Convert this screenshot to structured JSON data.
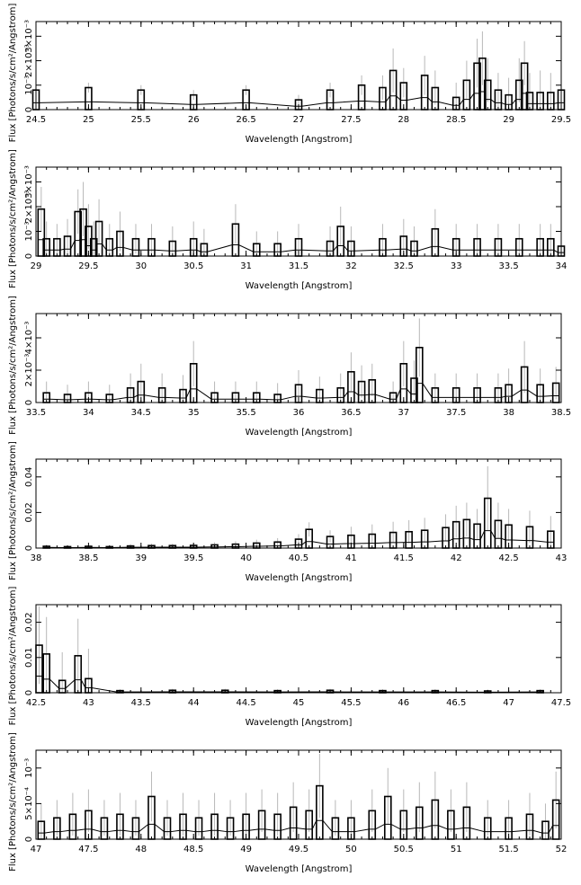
{
  "chart_data": [
    {
      "type": "step",
      "xlabel": "Wavelength [Angstrom]",
      "ylabel": "Flux [Photons/s/cm²/Angstrom]",
      "xlim": [
        24.5,
        29.5
      ],
      "ylim": [
        0,
        0.0036
      ],
      "xticks": [
        {
          "v": 24.5,
          "label": "24.5"
        },
        {
          "v": 25,
          "label": "25"
        },
        {
          "v": 25.5,
          "label": "25.5"
        },
        {
          "v": 26,
          "label": "26"
        },
        {
          "v": 26.5,
          "label": "26.5"
        },
        {
          "v": 27,
          "label": "27"
        },
        {
          "v": 27.5,
          "label": "27.5"
        },
        {
          "v": 28,
          "label": "28"
        },
        {
          "v": 28.5,
          "label": "28.5"
        },
        {
          "v": 29,
          "label": "29"
        },
        {
          "v": 29.5,
          "label": "29.5"
        }
      ],
      "yticks": [
        {
          "v": 0,
          "label": "0"
        },
        {
          "v": 0.001,
          "label": "10⁻³"
        },
        {
          "v": 0.002,
          "label": "2×10⁻³"
        },
        {
          "v": 0.003,
          "label": "3×10⁻³"
        }
      ],
      "bin_width": 0.025,
      "x": [
        24.5,
        25.0,
        25.5,
        26.0,
        26.5,
        27.0,
        27.3,
        27.6,
        27.8,
        27.9,
        28.0,
        28.2,
        28.3,
        28.5,
        28.6,
        28.7,
        28.75,
        28.8,
        28.9,
        29.0,
        29.1,
        29.15,
        29.2,
        29.3,
        29.4,
        29.5
      ],
      "flux": [
        0.0008,
        0.0009,
        0.0008,
        0.0006,
        0.0008,
        0.0004,
        0.0008,
        0.001,
        0.0009,
        0.0016,
        0.0011,
        0.0014,
        0.0009,
        0.0005,
        0.0012,
        0.0019,
        0.0021,
        0.0012,
        0.0008,
        0.0006,
        0.0012,
        0.0019,
        0.0007,
        0.0007,
        0.0007,
        0.0008
      ],
      "err": [
        0.0002,
        0.0002,
        0.0002,
        0.0002,
        0.0002,
        0.0002,
        0.0003,
        0.0004,
        0.0005,
        0.0009,
        0.0006,
        0.0008,
        0.0007,
        0.0006,
        0.0008,
        0.001,
        0.0011,
        0.0009,
        0.0007,
        0.0007,
        0.0009,
        0.0009,
        0.0008,
        0.0009,
        0.0008,
        0.0007
      ]
    },
    {
      "type": "step",
      "xlabel": "Wavelength [Angstrom]",
      "ylabel": "Flux [Photons/s/cm²/Angstrom]",
      "xlim": [
        29,
        34
      ],
      "ylim": [
        0,
        0.0036
      ],
      "xticks": [
        {
          "v": 29,
          "label": "29"
        },
        {
          "v": 29.5,
          "label": "29.5"
        },
        {
          "v": 30,
          "label": "30"
        },
        {
          "v": 30.5,
          "label": "30.5"
        },
        {
          "v": 31,
          "label": "31"
        },
        {
          "v": 31.5,
          "label": "31.5"
        },
        {
          "v": 32,
          "label": "32"
        },
        {
          "v": 32.5,
          "label": "32.5"
        },
        {
          "v": 33,
          "label": "33"
        },
        {
          "v": 33.5,
          "label": "33.5"
        },
        {
          "v": 34,
          "label": "34"
        }
      ],
      "yticks": [
        {
          "v": 0,
          "label": "0"
        },
        {
          "v": 0.001,
          "label": "10⁻³"
        },
        {
          "v": 0.002,
          "label": "2×10⁻³"
        },
        {
          "v": 0.003,
          "label": "3×10⁻³"
        }
      ],
      "bin_width": 0.025,
      "x": [
        29.05,
        29.1,
        29.2,
        29.3,
        29.4,
        29.45,
        29.5,
        29.55,
        29.6,
        29.7,
        29.8,
        29.95,
        30.1,
        30.3,
        30.5,
        30.6,
        30.9,
        31.1,
        31.3,
        31.5,
        31.8,
        31.9,
        32.0,
        32.3,
        32.5,
        32.6,
        32.8,
        33.0,
        33.2,
        33.4,
        33.6,
        33.8,
        33.9,
        34.0
      ],
      "flux": [
        0.0019,
        0.0007,
        0.0007,
        0.0008,
        0.0018,
        0.0019,
        0.0012,
        0.0007,
        0.0014,
        0.0007,
        0.001,
        0.0007,
        0.0007,
        0.0006,
        0.0007,
        0.0005,
        0.0013,
        0.0005,
        0.0005,
        0.0007,
        0.0006,
        0.0012,
        0.0006,
        0.0007,
        0.0008,
        0.0006,
        0.0011,
        0.0007,
        0.0007,
        0.0007,
        0.0007,
        0.0007,
        0.0007,
        0.0004
      ],
      "err": [
        0.0009,
        0.0007,
        0.0006,
        0.0007,
        0.0009,
        0.0011,
        0.0009,
        0.0007,
        0.0009,
        0.0006,
        0.0008,
        0.0006,
        0.0006,
        0.0006,
        0.0007,
        0.0006,
        0.0008,
        0.0005,
        0.0005,
        0.0006,
        0.0006,
        0.0008,
        0.0006,
        0.0006,
        0.0007,
        0.0006,
        0.0008,
        0.0006,
        0.0006,
        0.0006,
        0.0006,
        0.0006,
        0.0006,
        0.0005
      ]
    },
    {
      "type": "step",
      "xlabel": "Wavelength [Angstrom]",
      "ylabel": "Flux [Photons/s/cm²/Angstrom]",
      "xlim": [
        33.5,
        38.5
      ],
      "ylim": [
        0,
        0.0055
      ],
      "xticks": [
        {
          "v": 33.5,
          "label": "33.5"
        },
        {
          "v": 34,
          "label": "34"
        },
        {
          "v": 34.5,
          "label": "34.5"
        },
        {
          "v": 35,
          "label": "35"
        },
        {
          "v": 35.5,
          "label": "35.5"
        },
        {
          "v": 36,
          "label": "36"
        },
        {
          "v": 36.5,
          "label": "36.5"
        },
        {
          "v": 37,
          "label": "37"
        },
        {
          "v": 37.5,
          "label": "37.5"
        },
        {
          "v": 38,
          "label": "38"
        },
        {
          "v": 38.5,
          "label": "38.5"
        }
      ],
      "yticks": [
        {
          "v": 0,
          "label": "0"
        },
        {
          "v": 0.002,
          "label": "2×10⁻³"
        },
        {
          "v": 0.004,
          "label": "4×10⁻³"
        }
      ],
      "bin_width": 0.025,
      "x": [
        33.6,
        33.8,
        34.0,
        34.2,
        34.4,
        34.5,
        34.7,
        34.9,
        35.0,
        35.2,
        35.4,
        35.6,
        35.8,
        36.0,
        36.2,
        36.4,
        36.5,
        36.6,
        36.7,
        36.9,
        37.0,
        37.1,
        37.15,
        37.3,
        37.5,
        37.7,
        37.9,
        38.0,
        38.15,
        38.3,
        38.45
      ],
      "flux": [
        0.0006,
        0.0005,
        0.0006,
        0.0005,
        0.0009,
        0.0013,
        0.0009,
        0.0008,
        0.0024,
        0.0006,
        0.0006,
        0.0006,
        0.0005,
        0.0011,
        0.0008,
        0.0009,
        0.0019,
        0.0013,
        0.0014,
        0.0006,
        0.0024,
        0.0015,
        0.0034,
        0.0009,
        0.0009,
        0.0009,
        0.0009,
        0.0011,
        0.0022,
        0.0011,
        0.0012
      ],
      "err": [
        0.0007,
        0.0006,
        0.0007,
        0.0006,
        0.0009,
        0.0011,
        0.0009,
        0.0009,
        0.0014,
        0.0007,
        0.0007,
        0.0007,
        0.0007,
        0.0009,
        0.0008,
        0.0009,
        0.0012,
        0.001,
        0.001,
        0.0007,
        0.0014,
        0.0011,
        0.0018,
        0.0009,
        0.0009,
        0.0009,
        0.0009,
        0.001,
        0.0016,
        0.001,
        0.001
      ]
    },
    {
      "type": "step",
      "xlabel": "Wavelength [Angstrom]",
      "ylabel": "Flux [Photons/s/cm²/Angstrom]",
      "xlim": [
        38,
        43
      ],
      "ylim": [
        0,
        0.05
      ],
      "xticks": [
        {
          "v": 38,
          "label": "38"
        },
        {
          "v": 38.5,
          "label": "38.5"
        },
        {
          "v": 39,
          "label": "39"
        },
        {
          "v": 39.5,
          "label": "39.5"
        },
        {
          "v": 40,
          "label": "40"
        },
        {
          "v": 40.5,
          "label": "40.5"
        },
        {
          "v": 41,
          "label": "41"
        },
        {
          "v": 41.5,
          "label": "41.5"
        },
        {
          "v": 42,
          "label": "42"
        },
        {
          "v": 42.5,
          "label": "42.5"
        },
        {
          "v": 43,
          "label": "43"
        }
      ],
      "yticks": [
        {
          "v": 0,
          "label": "0"
        },
        {
          "v": 0.02,
          "label": "0.02"
        },
        {
          "v": 0.04,
          "label": "0.04"
        }
      ],
      "bin_width": 0.025,
      "x": [
        38.1,
        38.3,
        38.5,
        38.7,
        38.9,
        39.1,
        39.3,
        39.5,
        39.7,
        39.9,
        40.1,
        40.3,
        40.5,
        40.6,
        40.8,
        41.0,
        41.2,
        41.4,
        41.55,
        41.7,
        41.9,
        42.0,
        42.1,
        42.2,
        42.3,
        42.4,
        42.5,
        42.7,
        42.9
      ],
      "flux": [
        0.001,
        0.0008,
        0.001,
        0.0008,
        0.0012,
        0.0014,
        0.0014,
        0.0015,
        0.0018,
        0.0022,
        0.0028,
        0.0034,
        0.005,
        0.0105,
        0.0065,
        0.0072,
        0.0078,
        0.0088,
        0.0092,
        0.01,
        0.0115,
        0.0148,
        0.016,
        0.0135,
        0.028,
        0.0155,
        0.013,
        0.012,
        0.0095
      ],
      "err": [
        0.0009,
        0.0008,
        0.0009,
        0.0008,
        0.001,
        0.0011,
        0.0011,
        0.0012,
        0.0014,
        0.0016,
        0.0019,
        0.0022,
        0.0028,
        0.004,
        0.0035,
        0.0048,
        0.0055,
        0.006,
        0.0065,
        0.007,
        0.0075,
        0.009,
        0.0095,
        0.0085,
        0.018,
        0.01,
        0.009,
        0.009,
        0.0085
      ]
    },
    {
      "type": "step",
      "xlabel": "Wavelength [Angstrom]",
      "ylabel": "Flux [Photons/s/cm²/Angstrom]",
      "xlim": [
        42.5,
        47.5
      ],
      "ylim": [
        0,
        0.025
      ],
      "xticks": [
        {
          "v": 42.5,
          "label": "42.5"
        },
        {
          "v": 43,
          "label": "43"
        },
        {
          "v": 43.5,
          "label": "43.5"
        },
        {
          "v": 44,
          "label": "44"
        },
        {
          "v": 44.5,
          "label": "44.5"
        },
        {
          "v": 45,
          "label": "45"
        },
        {
          "v": 45.5,
          "label": "45.5"
        },
        {
          "v": 46,
          "label": "46"
        },
        {
          "v": 46.5,
          "label": "46.5"
        },
        {
          "v": 47,
          "label": "47"
        },
        {
          "v": 47.5,
          "label": "47.5"
        }
      ],
      "yticks": [
        {
          "v": 0,
          "label": "0"
        },
        {
          "v": 0.01,
          "label": "0.01"
        },
        {
          "v": 0.02,
          "label": "0.02"
        }
      ],
      "bin_width": 0.025,
      "x": [
        42.53,
        42.6,
        42.75,
        42.9,
        43.0,
        43.3,
        43.8,
        44.3,
        44.8,
        45.3,
        45.8,
        46.3,
        46.8,
        47.3
      ],
      "flux": [
        0.0135,
        0.011,
        0.0035,
        0.0105,
        0.004,
        0.0006,
        0.0007,
        0.0007,
        0.0006,
        0.0007,
        0.0006,
        0.0006,
        0.0005,
        0.0006
      ],
      "err": [
        0.011,
        0.0105,
        0.008,
        0.0105,
        0.0085,
        0.0004,
        0.0004,
        0.0004,
        0.0004,
        0.0004,
        0.0004,
        0.0004,
        0.0004,
        0.0004
      ]
    },
    {
      "type": "step",
      "xlabel": "Wavelength [Angstrom]",
      "ylabel": "Flux [Photons/s/cm²/Angstrom]",
      "xlim": [
        47,
        52
      ],
      "ylim": [
        0,
        0.00125
      ],
      "xticks": [
        {
          "v": 47,
          "label": "47"
        },
        {
          "v": 47.5,
          "label": "47.5"
        },
        {
          "v": 48,
          "label": "48"
        },
        {
          "v": 48.5,
          "label": "48.5"
        },
        {
          "v": 49,
          "label": "49"
        },
        {
          "v": 49.5,
          "label": "49.5"
        },
        {
          "v": 50,
          "label": "50"
        },
        {
          "v": 50.5,
          "label": "50.5"
        },
        {
          "v": 51,
          "label": "51"
        },
        {
          "v": 51.5,
          "label": "51.5"
        },
        {
          "v": 52,
          "label": "52"
        }
      ],
      "yticks": [
        {
          "v": 0,
          "label": "0"
        },
        {
          "v": 0.0005,
          "label": "5×10⁻⁴"
        },
        {
          "v": 0.001,
          "label": "10⁻³"
        }
      ],
      "bin_width": 0.025,
      "x": [
        47.05,
        47.2,
        47.35,
        47.5,
        47.65,
        47.8,
        47.95,
        48.1,
        48.25,
        48.4,
        48.55,
        48.7,
        48.85,
        49.0,
        49.15,
        49.3,
        49.45,
        49.6,
        49.7,
        49.85,
        50.0,
        50.2,
        50.35,
        50.5,
        50.65,
        50.8,
        50.95,
        51.1,
        51.3,
        51.5,
        51.7,
        51.85,
        51.95
      ],
      "flux": [
        0.00025,
        0.0003,
        0.00035,
        0.0004,
        0.0003,
        0.00035,
        0.0003,
        0.0006,
        0.0003,
        0.00035,
        0.0003,
        0.00035,
        0.0003,
        0.00035,
        0.0004,
        0.00035,
        0.00045,
        0.0004,
        0.00075,
        0.0003,
        0.0003,
        0.0004,
        0.0006,
        0.0004,
        0.00045,
        0.00055,
        0.0004,
        0.00045,
        0.0003,
        0.0003,
        0.00035,
        0.00025,
        0.00055
      ],
      "err": [
        0.00025,
        0.00025,
        0.0003,
        0.0003,
        0.00025,
        0.0003,
        0.00025,
        0.00035,
        0.00025,
        0.0003,
        0.00025,
        0.0003,
        0.00025,
        0.0003,
        0.0003,
        0.0003,
        0.00035,
        0.0003,
        0.00045,
        0.00025,
        0.00025,
        0.0003,
        0.0004,
        0.0003,
        0.00035,
        0.0004,
        0.0003,
        0.00035,
        0.00025,
        0.00025,
        0.0003,
        0.00025,
        0.0004
      ]
    }
  ]
}
